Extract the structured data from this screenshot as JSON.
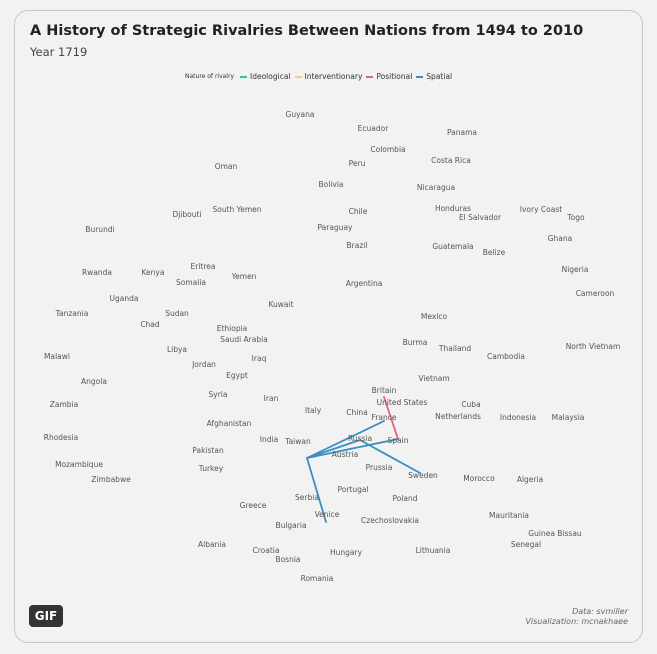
{
  "title": "A History of Strategic Rivalries Between Nations from 1494 to 2010",
  "subtitle": "Year 1719",
  "legend": {
    "title": "Nature of rivalry",
    "items": [
      {
        "label": "Ideological",
        "color": "#2ec4a0"
      },
      {
        "label": "Interventionary",
        "color": "#f5c98a"
      },
      {
        "label": "Positional",
        "color": "#e8607a"
      },
      {
        "label": "Spatial",
        "color": "#3a8fc0"
      }
    ]
  },
  "badge": "GIF",
  "caption": {
    "line1": "Data: svmiller",
    "line2": "Visualization: mcnakhaee"
  },
  "nodes": [
    "Guyana",
    "Ecuador",
    "Panama",
    "Colombia",
    "Peru",
    "Costa Rica",
    "Oman",
    "Bolivia",
    "Nicaragua",
    "Djibouti",
    "South Yemen",
    "Chile",
    "Honduras",
    "El Salvador",
    "Ivory Coast",
    "Togo",
    "Burundi",
    "Paraguay",
    "Brazil",
    "Guatemala",
    "Ghana",
    "Belize",
    "Eritrea",
    "Rwanda",
    "Kenya",
    "Yemen",
    "Somalia",
    "Nigeria",
    "Argentina",
    "Uganda",
    "Cameroon",
    "Kuwait",
    "Tanzania",
    "Sudan",
    "Mexico",
    "Chad",
    "Ethiopia",
    "Saudi Arabia",
    "Burma",
    "Libya",
    "Thailand",
    "North Vietnam",
    "Cambodia",
    "Malawi",
    "Iraq",
    "Jordan",
    "Egypt",
    "Angola",
    "Vietnam",
    "Syria",
    "Britain",
    "Iran",
    "United States",
    "Zambia",
    "Cuba",
    "Italy",
    "China",
    "France",
    "Afghanistan",
    "Netherlands",
    "Indonesia",
    "Malaysia",
    "Rhodesia",
    "India",
    "Taiwan",
    "Russia",
    "Spain",
    "Pakistan",
    "Austria",
    "Mozambique",
    "Turkey",
    "Prussia",
    "Sweden",
    "Morocco",
    "Algeria",
    "Zimbabwe",
    "Portugal",
    "Serbia",
    "Poland",
    "Greece",
    "Venice",
    "Mauritania",
    "Czechoslovakia",
    "Bulgaria",
    "Guinea Bissau",
    "Senegal",
    "Albania",
    "Croatia",
    "Lithuania",
    "Hungary",
    "Bosnia",
    "Romania"
  ],
  "rivalries": [
    {
      "a": "Britain",
      "b": "Spain",
      "type": "Positional"
    },
    {
      "a": "Austria",
      "b": "France",
      "type": "Spatial"
    },
    {
      "a": "Austria",
      "b": "Russia",
      "type": "Spatial"
    },
    {
      "a": "Austria",
      "b": "Spain",
      "type": "Spatial"
    },
    {
      "a": "Austria",
      "b": "Venice",
      "type": "Spatial"
    },
    {
      "a": "Russia",
      "b": "Sweden",
      "type": "Spatial"
    }
  ]
}
